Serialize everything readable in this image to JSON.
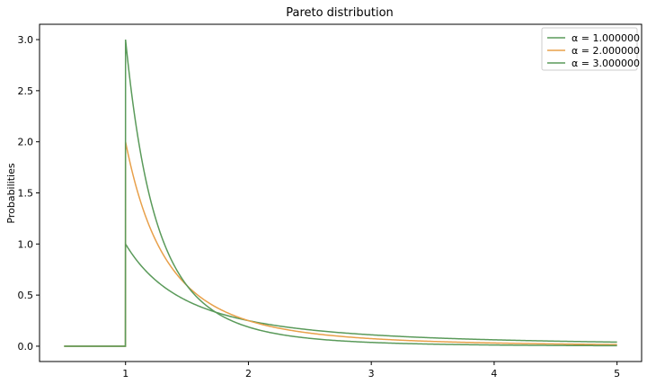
{
  "chart_data": {
    "type": "line",
    "title": "Pareto distribution",
    "xlabel": "",
    "ylabel": "Probabilities",
    "xlim": [
      0.3,
      5.2
    ],
    "ylim": [
      -0.15,
      3.15
    ],
    "x_ticks": [
      1,
      2,
      3,
      4,
      5
    ],
    "x_tick_labels": [
      "1",
      "2",
      "3",
      "4",
      "5"
    ],
    "y_ticks": [
      0.0,
      0.5,
      1.0,
      1.5,
      2.0,
      2.5,
      3.0
    ],
    "y_tick_labels": [
      "0.0",
      "0.5",
      "1.0",
      "1.5",
      "2.0",
      "2.5",
      "3.0"
    ],
    "grid": false,
    "legend_position": "top-right",
    "x_range": [
      0.5,
      5.0
    ],
    "series": [
      {
        "name": "α = 1.000000",
        "alpha": 1,
        "color": "#5a9a5a"
      },
      {
        "name": "α = 2.000000",
        "alpha": 2,
        "color": "#e8a04a"
      },
      {
        "name": "α = 3.000000",
        "alpha": 3,
        "color": "#5a9a5a"
      }
    ]
  }
}
